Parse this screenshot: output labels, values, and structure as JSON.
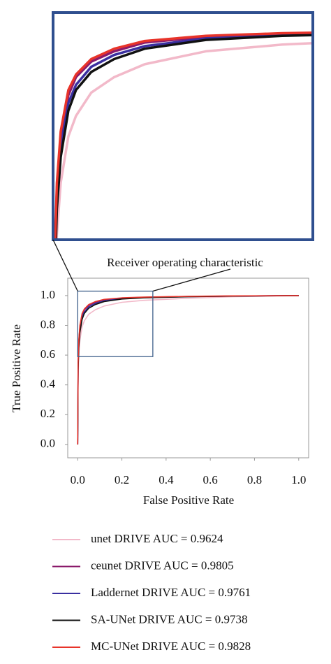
{
  "chart_data": {
    "type": "line",
    "title": "Receiver operating characteristic",
    "x_label": "False Positive Rate",
    "y_label": "True Positive Rate",
    "x": [
      0,
      0.002,
      0.005,
      0.01,
      0.02,
      0.03,
      0.05,
      0.08,
      0.12,
      0.2,
      0.3,
      0.5,
      0.7,
      1.0
    ],
    "series": [
      {
        "name": "unet DRIVE AUC = 0.9624",
        "color": "#f2b9c9",
        "values": [
          0,
          0.45,
          0.6,
          0.7,
          0.79,
          0.83,
          0.875,
          0.905,
          0.93,
          0.955,
          0.968,
          0.982,
          0.992,
          1.0
        ]
      },
      {
        "name": "ceunet DRIVE AUC = 0.9805",
        "color": "#8b1a6b",
        "values": [
          0,
          0.54,
          0.69,
          0.79,
          0.87,
          0.905,
          0.935,
          0.955,
          0.972,
          0.983,
          0.989,
          0.994,
          0.997,
          1.0
        ]
      },
      {
        "name": "Laddernet DRIVE AUC = 0.9761",
        "color": "#3a2fa0",
        "values": [
          0,
          0.52,
          0.67,
          0.77,
          0.855,
          0.89,
          0.925,
          0.948,
          0.965,
          0.98,
          0.987,
          0.993,
          0.997,
          1.0
        ]
      },
      {
        "name": "SA-UNet DRIVE AUC = 0.9738",
        "color": "#111111",
        "values": [
          0,
          0.5,
          0.65,
          0.75,
          0.84,
          0.88,
          0.915,
          0.94,
          0.96,
          0.977,
          0.985,
          0.992,
          0.996,
          1.0
        ]
      },
      {
        "name": "MC-UNet DRIVE AUC = 0.9828",
        "color": "#e8342a",
        "values": [
          0,
          0.55,
          0.7,
          0.8,
          0.88,
          0.91,
          0.94,
          0.96,
          0.975,
          0.985,
          0.99,
          0.995,
          0.998,
          1.0
        ]
      }
    ],
    "xlim": [
      -0.045,
      1.045
    ],
    "ylim": [
      -0.09,
      1.117
    ],
    "xticks": [
      {
        "value": 0,
        "label": "0.0"
      },
      {
        "value": 0.2,
        "label": "0.2"
      },
      {
        "value": 0.4,
        "label": "0.4"
      },
      {
        "value": 0.6,
        "label": "0.6"
      },
      {
        "value": 0.8,
        "label": "0.8"
      },
      {
        "value": 1,
        "label": "1.0"
      }
    ],
    "yticks": [
      {
        "value": 0,
        "label": "0.0"
      },
      {
        "value": 0.2,
        "label": "0.2"
      },
      {
        "value": 0.4,
        "label": "0.4"
      },
      {
        "value": 0.6,
        "label": "0.6"
      },
      {
        "value": 0.8,
        "label": "0.8"
      },
      {
        "value": 1,
        "label": "1.0"
      }
    ],
    "zoom": {
      "xlim": [
        0,
        0.34
      ],
      "ylim": [
        0.59,
        1.03
      ]
    }
  }
}
